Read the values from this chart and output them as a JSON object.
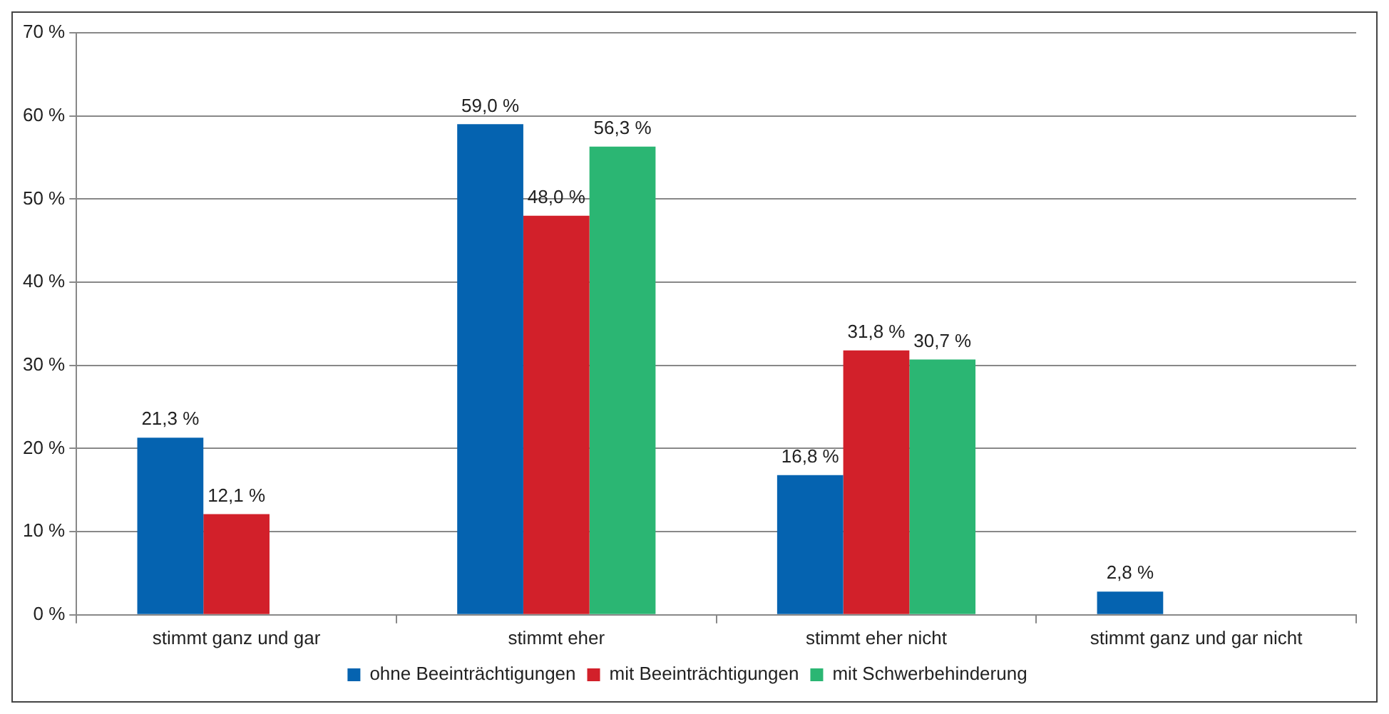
{
  "chart_data": {
    "type": "bar",
    "categories": [
      "stimmt ganz und gar",
      "stimmt eher",
      "stimmt eher nicht",
      "stimmt ganz und gar nicht"
    ],
    "series": [
      {
        "name": "ohne Beeinträchtigungen",
        "color": "#0563b0",
        "values": [
          21.3,
          59.0,
          16.8,
          2.8
        ],
        "value_labels": [
          "21,3 %",
          "59,0 %",
          "16,8 %",
          "2,8 %"
        ]
      },
      {
        "name": "mit Beeinträchtigungen",
        "color": "#d2202a",
        "values": [
          12.1,
          48.0,
          31.8,
          null
        ],
        "value_labels": [
          "12,1 %",
          "48,0 %",
          "31,8 %",
          null
        ]
      },
      {
        "name": "mit Schwerbehinderung",
        "color": "#2bb673",
        "values": [
          null,
          56.3,
          30.7,
          null
        ],
        "value_labels": [
          null,
          "56,3 %",
          "30,7 %",
          null
        ]
      }
    ],
    "ylim": [
      0,
      70
    ],
    "yticks": [
      {
        "value": 0,
        "label": "0 %"
      },
      {
        "value": 10,
        "label": "10 %"
      },
      {
        "value": 20,
        "label": "20 %"
      },
      {
        "value": 30,
        "label": "30 %"
      },
      {
        "value": 40,
        "label": "40 %"
      },
      {
        "value": 50,
        "label": "50 %"
      },
      {
        "value": 60,
        "label": "60 %"
      },
      {
        "value": 70,
        "label": "70 %"
      }
    ],
    "grid": "y",
    "legend": "bottom"
  }
}
